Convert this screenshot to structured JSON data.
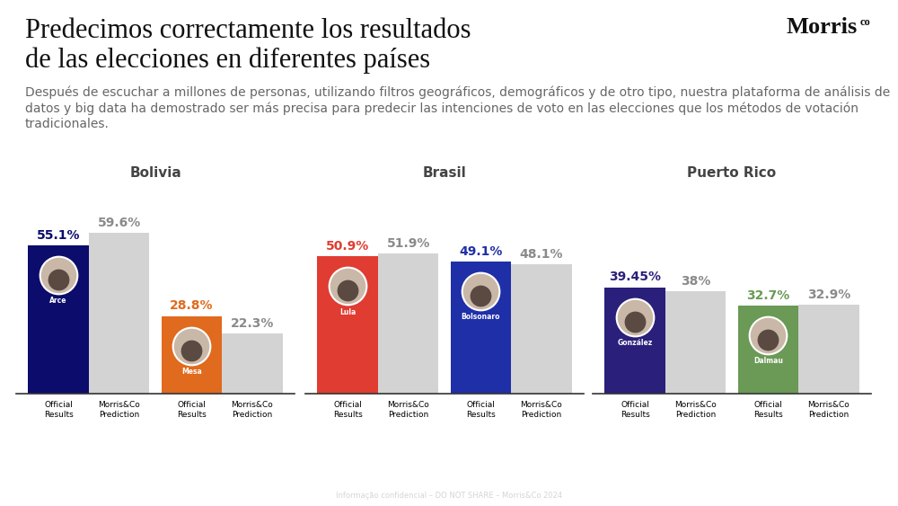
{
  "title": "Predecimos correctamente los resultados\nde las elecciones en diferentes países",
  "subtitle": "Después de escuchar a millones de personas, utilizando filtros geográficos, demográficos y de otro tipo, nuestra plataforma de análisis de datos y big data ha demostrado ser más precisa para predecir las intenciones de voto en las elecciones que los métodos de votación tradicionales.",
  "logo": {
    "text": "Morris",
    "superscript": "co"
  },
  "footer": "Informação confidencial – DO NOT SHARE – Morris&Co 2024",
  "chart_data": [
    {
      "type": "bar",
      "title": "Bolivia",
      "categories": [
        "Official\nResults",
        "Morris&Co\nPrediction",
        "Official\nResults",
        "Morris&Co\nPrediction"
      ],
      "values": [
        55.1,
        59.6,
        28.8,
        22.3
      ],
      "value_labels": [
        "55.1%",
        "59.6%",
        "28.8%",
        "22.3%"
      ],
      "colors": [
        "#0b0c6b",
        "#d3d3d3",
        "#e06a1e",
        "#d3d3d3"
      ],
      "bar_names": [
        "Arce",
        null,
        "Mesa",
        null
      ],
      "ylim": [
        0,
        70
      ],
      "data_labels": true,
      "tick_labels": "x"
    },
    {
      "type": "bar",
      "title": "Brasil",
      "categories": [
        "Official\nResults",
        "Morris&Co\nPrediction",
        "Official\nResults",
        "Morris&Co\nPrediction"
      ],
      "values": [
        50.9,
        51.9,
        49.1,
        48.1
      ],
      "value_labels": [
        "50.9%",
        "51.9%",
        "49.1%",
        "48.1%"
      ],
      "colors": [
        "#e03c31",
        "#d3d3d3",
        "#1f2fa8",
        "#d3d3d3"
      ],
      "bar_names": [
        "Lula",
        null,
        "Bolsonaro",
        null
      ],
      "ylim": [
        0,
        70
      ],
      "data_labels": true,
      "tick_labels": "x"
    },
    {
      "type": "bar",
      "title": "Puerto Rico",
      "categories": [
        "Official\nResults",
        "Morris&Co\nPrediction",
        "Official\nResults",
        "Morris&Co\nPrediction"
      ],
      "values": [
        39.45,
        38,
        32.7,
        32.9
      ],
      "value_labels": [
        "39.45%",
        "38%",
        "32.7%",
        "32.9%"
      ],
      "colors": [
        "#2a1f7a",
        "#d3d3d3",
        "#6a9a55",
        "#d3d3d3"
      ],
      "bar_names": [
        "González",
        null,
        "Dalmau",
        null
      ],
      "ylim": [
        0,
        70
      ],
      "data_labels": true,
      "tick_labels": "x"
    }
  ]
}
